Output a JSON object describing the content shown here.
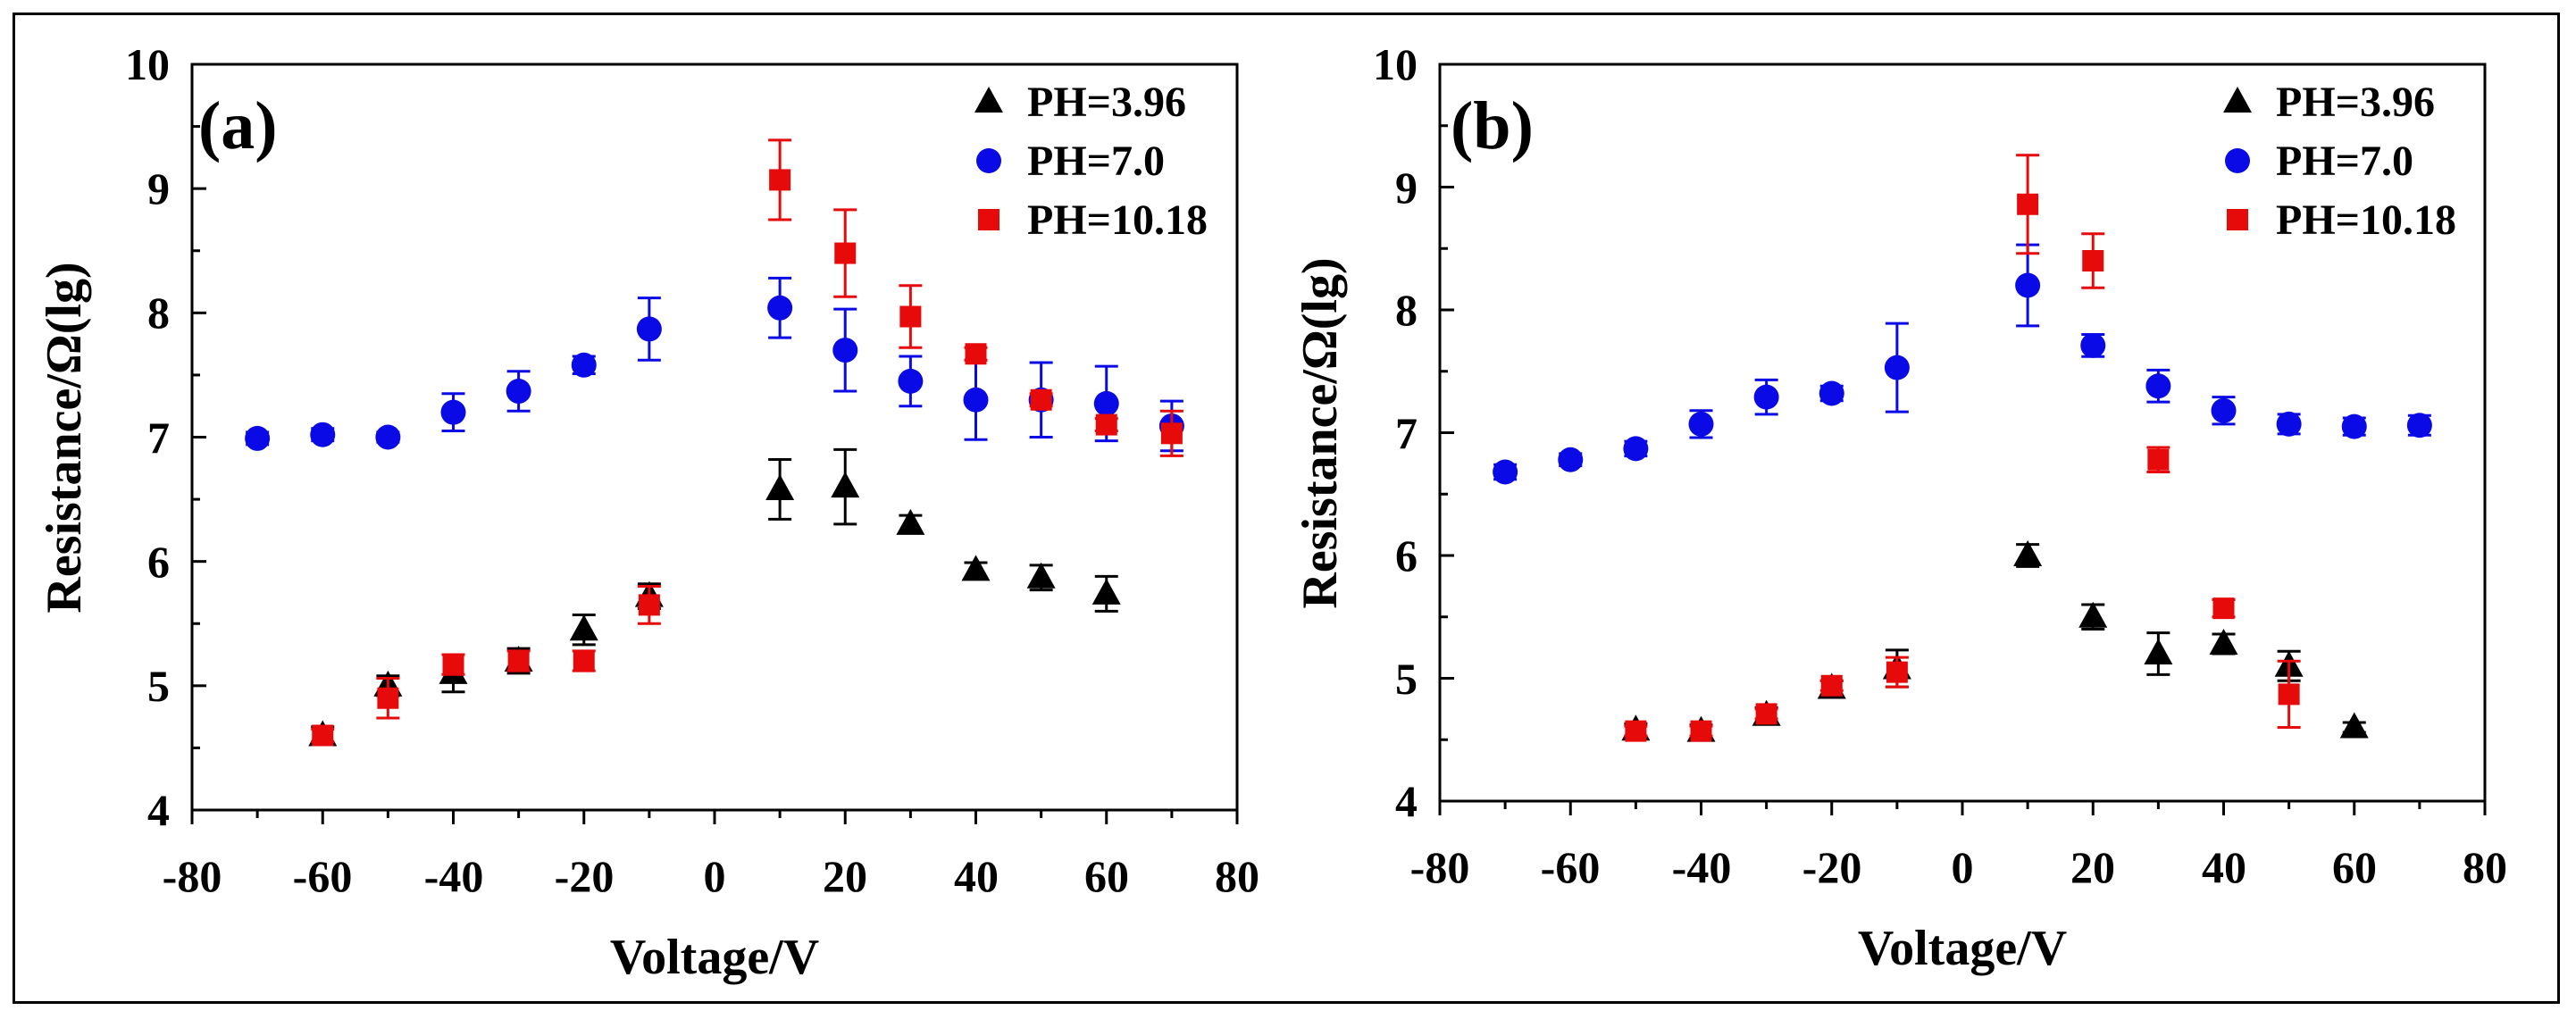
{
  "chart_data": [
    {
      "type": "scatter",
      "panel_label": "(a)",
      "xlabel": "Voltage/V",
      "ylabel": "Resistance/Ω(lg)",
      "xlim": [
        -80,
        80
      ],
      "ylim": [
        4,
        10
      ],
      "xticks": [
        "-80",
        "-60",
        "-40",
        "-20",
        "0",
        "20",
        "40",
        "60",
        "80"
      ],
      "yticks": [
        "4",
        "5",
        "6",
        "7",
        "8",
        "9",
        "10"
      ],
      "legend_position": "top-right",
      "series": [
        {
          "name": "PH=3.96",
          "marker": "triangle",
          "color": "#000000",
          "points": [
            [
              -60,
              4.6,
              0.07
            ],
            [
              -50,
              5.0,
              0.08
            ],
            [
              -40,
              5.1,
              0.15
            ],
            [
              -30,
              5.2,
              0.1
            ],
            [
              -20,
              5.45,
              0.12
            ],
            [
              -10,
              5.72,
              0.1
            ],
            [
              10,
              6.58,
              0.24
            ],
            [
              20,
              6.6,
              0.3
            ],
            [
              30,
              6.3,
              0.07
            ],
            [
              40,
              5.93,
              0.06
            ],
            [
              50,
              5.87,
              0.1
            ],
            [
              60,
              5.74,
              0.14
            ]
          ]
        },
        {
          "name": "PH=7.0",
          "marker": "circle",
          "color": "#0a0ae6",
          "points": [
            [
              -70,
              6.99,
              0.05
            ],
            [
              -60,
              7.02,
              0.05
            ],
            [
              -50,
              7.0,
              0.04
            ],
            [
              -40,
              7.2,
              0.15
            ],
            [
              -30,
              7.37,
              0.16
            ],
            [
              -20,
              7.58,
              0.07
            ],
            [
              -10,
              7.87,
              0.25
            ],
            [
              10,
              8.04,
              0.24
            ],
            [
              20,
              7.7,
              0.33
            ],
            [
              30,
              7.45,
              0.2
            ],
            [
              40,
              7.3,
              0.32
            ],
            [
              50,
              7.3,
              0.3
            ],
            [
              60,
              7.27,
              0.3
            ],
            [
              70,
              7.09,
              0.2
            ]
          ]
        },
        {
          "name": "PH=10.18",
          "marker": "square",
          "color": "#e60a0a",
          "points": [
            [
              -60,
              4.6,
              0.05
            ],
            [
              -50,
              4.9,
              0.16
            ],
            [
              -40,
              5.17,
              0.08
            ],
            [
              -30,
              5.2,
              0.08
            ],
            [
              -20,
              5.2,
              0.08
            ],
            [
              -10,
              5.65,
              0.15
            ],
            [
              10,
              9.07,
              0.32
            ],
            [
              20,
              8.48,
              0.35
            ],
            [
              30,
              7.97,
              0.25
            ],
            [
              40,
              7.67,
              0.05
            ],
            [
              50,
              7.3,
              0.05
            ],
            [
              60,
              7.1,
              0.05
            ],
            [
              70,
              7.03,
              0.18
            ]
          ]
        }
      ]
    },
    {
      "type": "scatter",
      "panel_label": "(b)",
      "xlabel": "Voltage/V",
      "ylabel": "Resistance/Ω(lg)",
      "xlim": [
        -80,
        80
      ],
      "ylim": [
        4,
        10
      ],
      "xticks": [
        "-80",
        "-60",
        "-40",
        "-20",
        "0",
        "20",
        "40",
        "60",
        "80"
      ],
      "yticks": [
        "4",
        "5",
        "6",
        "7",
        "8",
        "9",
        "10"
      ],
      "legend_position": "top-right",
      "series": [
        {
          "name": "PH=3.96",
          "marker": "triangle",
          "color": "#000000",
          "points": [
            [
              -50,
              4.58,
              0.05
            ],
            [
              -40,
              4.57,
              0.05
            ],
            [
              -30,
              4.7,
              0.06
            ],
            [
              -20,
              4.92,
              0.06
            ],
            [
              -10,
              5.08,
              0.15
            ],
            [
              10,
              6.0,
              0.09
            ],
            [
              20,
              5.5,
              0.1
            ],
            [
              30,
              5.2,
              0.17
            ],
            [
              40,
              5.28,
              0.08
            ],
            [
              50,
              5.1,
              0.12
            ],
            [
              60,
              4.6,
              0.04
            ]
          ]
        },
        {
          "name": "PH=7.0",
          "marker": "circle",
          "color": "#0a0ae6",
          "points": [
            [
              -70,
              6.68,
              0.06
            ],
            [
              -60,
              6.78,
              0.05
            ],
            [
              -50,
              6.87,
              0.06
            ],
            [
              -40,
              7.07,
              0.11
            ],
            [
              -30,
              7.29,
              0.14
            ],
            [
              -20,
              7.32,
              0.06
            ],
            [
              -10,
              7.53,
              0.36
            ],
            [
              10,
              8.2,
              0.33
            ],
            [
              20,
              7.71,
              0.09
            ],
            [
              30,
              7.38,
              0.13
            ],
            [
              40,
              7.18,
              0.11
            ],
            [
              50,
              7.07,
              0.08
            ],
            [
              60,
              7.05,
              0.07
            ],
            [
              70,
              7.06,
              0.08
            ]
          ]
        },
        {
          "name": "PH=10.18",
          "marker": "square",
          "color": "#e60a0a",
          "points": [
            [
              -50,
              4.57,
              0.04
            ],
            [
              -40,
              4.57,
              0.04
            ],
            [
              -30,
              4.71,
              0.04
            ],
            [
              -20,
              4.94,
              0.04
            ],
            [
              -10,
              5.05,
              0.12
            ],
            [
              10,
              8.86,
              0.4
            ],
            [
              20,
              8.4,
              0.22
            ],
            [
              30,
              6.78,
              0.1
            ],
            [
              40,
              5.57,
              0.07
            ],
            [
              50,
              4.87,
              0.27
            ]
          ]
        }
      ]
    }
  ]
}
